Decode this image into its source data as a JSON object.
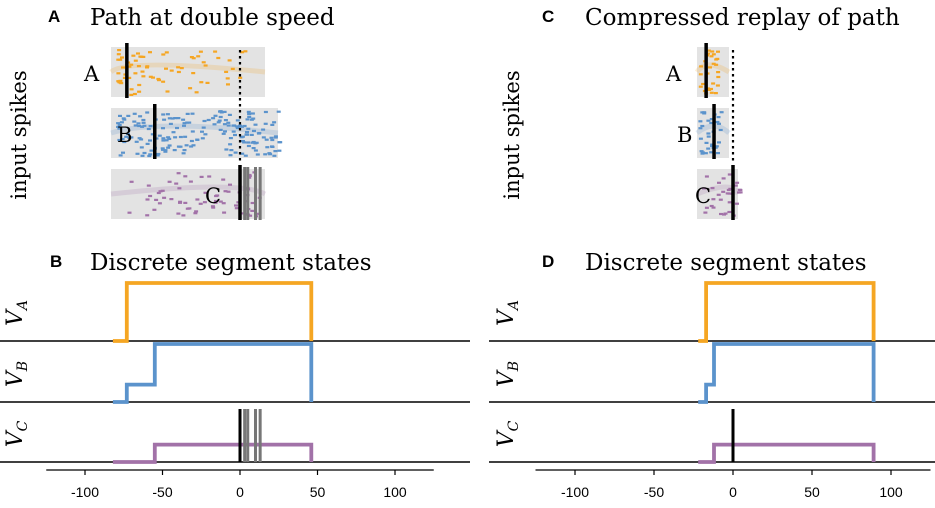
{
  "colors": {
    "A": "#f5a623",
    "B": "#5b93cc",
    "C": "#a272a8",
    "background": "#e3e3e3",
    "grey_line": "#777777"
  },
  "panels": {
    "A": {
      "letter": "A",
      "title": "Path at double speed"
    },
    "B": {
      "letter": "B",
      "title": "Discrete segment states"
    },
    "C": {
      "letter": "C",
      "title": "Compressed replay of path"
    },
    "D": {
      "letter": "D",
      "title": "Discrete segment states"
    }
  },
  "ylabels": {
    "input_spikes": "input spikes"
  },
  "segment_labels": [
    "A",
    "B",
    "C"
  ],
  "v_labels": [
    {
      "base": "V",
      "sub": "A"
    },
    {
      "base": "V",
      "sub": "B"
    },
    {
      "base": "V",
      "sub": "C"
    }
  ],
  "chart_data": [
    {
      "panel": "A",
      "type": "scatter",
      "title": "Path at double speed",
      "ylabel": "input spikes",
      "xlim": [
        -125,
        125
      ],
      "rows": [
        {
          "segment": "A",
          "spike_range": [
            -80,
            5
          ],
          "marker_x": -73
        },
        {
          "segment": "B",
          "spike_range": [
            -80,
            25
          ],
          "marker_x": -55
        },
        {
          "segment": "C",
          "spike_range": [
            -80,
            15
          ],
          "marker_x": 0
        }
      ],
      "dotted_line_x": 0,
      "grey_lines_x": [
        3,
        5,
        10,
        13
      ]
    },
    {
      "panel": "B",
      "type": "line",
      "title": "Discrete segment states",
      "xlim": [
        -125,
        125
      ],
      "xticks": [
        -100,
        -50,
        0,
        50,
        100
      ],
      "ylim": [
        0,
        1
      ],
      "series": [
        {
          "name": "V_A",
          "x": [
            -82,
            -73,
            -73,
            46,
            46
          ],
          "y": [
            0,
            0,
            1,
            1,
            0
          ]
        },
        {
          "name": "V_B",
          "x": [
            -82,
            -73,
            -73,
            -55,
            -55,
            46,
            46
          ],
          "y": [
            0,
            0,
            0.3,
            0.3,
            1,
            1,
            0
          ]
        },
        {
          "name": "V_C",
          "x": [
            -82,
            -55,
            -55,
            46,
            46
          ],
          "y": [
            0,
            0,
            0.3,
            0.3,
            0
          ]
        }
      ],
      "black_line_x": 0,
      "grey_lines_x": [
        3,
        5,
        10,
        13
      ]
    },
    {
      "panel": "C",
      "type": "scatter",
      "title": "Compressed replay of path",
      "ylabel": "input spikes",
      "xlim": [
        -125,
        125
      ],
      "rows": [
        {
          "segment": "A",
          "spike_range": [
            -22,
            -10
          ],
          "marker_x": -17
        },
        {
          "segment": "B",
          "spike_range": [
            -22,
            -8
          ],
          "marker_x": -12
        },
        {
          "segment": "C",
          "spike_range": [
            -20,
            4
          ],
          "marker_x": 0
        }
      ],
      "dotted_line_x": 0
    },
    {
      "panel": "D",
      "type": "line",
      "title": "Discrete segment states",
      "xlim": [
        -125,
        125
      ],
      "xticks": [
        -100,
        -50,
        0,
        50,
        100
      ],
      "ylim": [
        0,
        1
      ],
      "series": [
        {
          "name": "V_A",
          "x": [
            -22,
            -17,
            -17,
            89,
            89
          ],
          "y": [
            0,
            0,
            1,
            1,
            0
          ]
        },
        {
          "name": "V_B",
          "x": [
            -22,
            -17,
            -17,
            -12,
            -12,
            89,
            89
          ],
          "y": [
            0,
            0,
            0.3,
            0.3,
            1,
            1,
            0
          ]
        },
        {
          "name": "V_C",
          "x": [
            -22,
            -12,
            -12,
            89,
            89
          ],
          "y": [
            0,
            0,
            0.3,
            0.3,
            0
          ]
        }
      ],
      "black_line_x": 0
    }
  ]
}
